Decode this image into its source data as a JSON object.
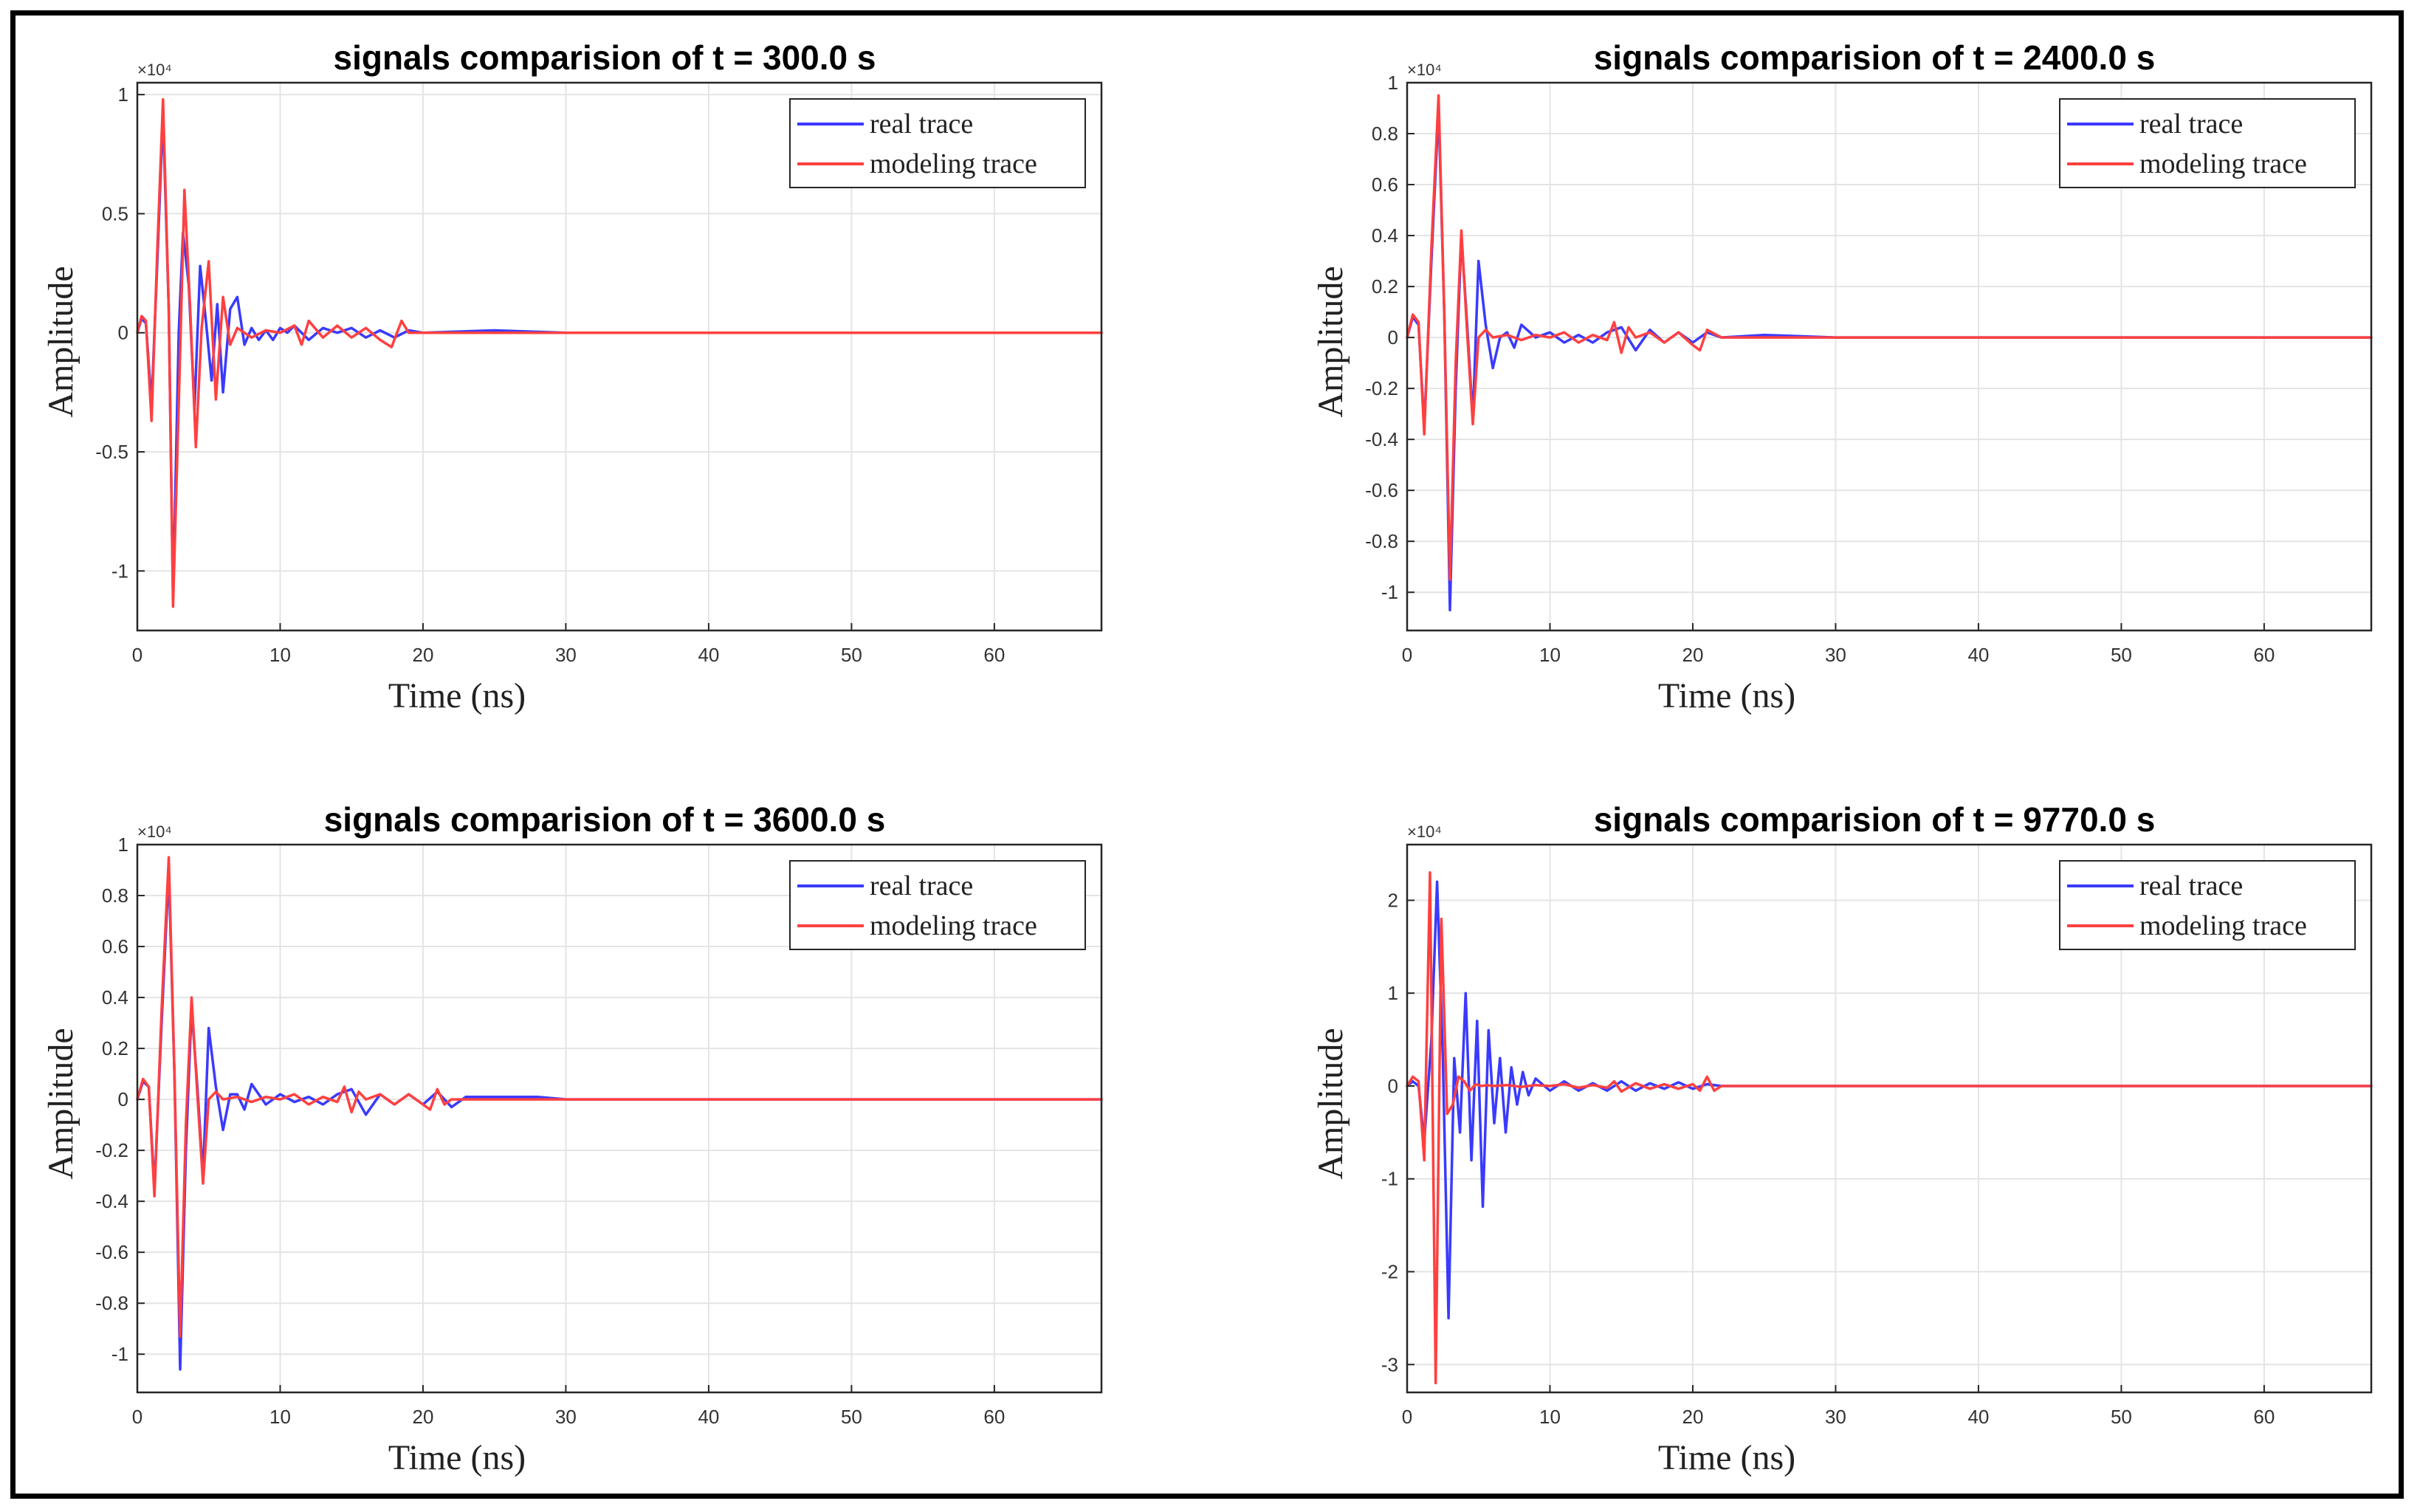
{
  "chart_data": [
    {
      "type": "line",
      "title": "signals comparision of t = 300.0 s",
      "xlabel": "Time (ns)",
      "ylabel": "Amplitude",
      "y_multiplier": "×10⁴",
      "xlim": [
        0,
        67.5
      ],
      "ylim": [
        -1.25,
        1.05
      ],
      "xticks": [
        0,
        10,
        20,
        30,
        40,
        50,
        60
      ],
      "yticks": [
        -1,
        -0.5,
        0,
        0.5,
        1
      ],
      "ytick_labels": [
        "-1",
        "-0.5",
        "0",
        "0.5",
        "1"
      ],
      "legend": [
        "real trace",
        "modeling trace"
      ],
      "legend_position": "top-right",
      "grid": true,
      "series": [
        {
          "name": "real trace",
          "color": "#3a3aff",
          "x": [
            0,
            0.3,
            0.6,
            1.0,
            1.4,
            1.8,
            2.2,
            2.5,
            2.9,
            3.2,
            3.6,
            4.0,
            4.4,
            4.8,
            5.2,
            5.6,
            6.0,
            6.5,
            7.0,
            7.5,
            8.0,
            8.5,
            9.0,
            9.5,
            10.0,
            10.5,
            11.0,
            12,
            13,
            14,
            15,
            16,
            17,
            18,
            19,
            20,
            25,
            30,
            40,
            50,
            60,
            67.5
          ],
          "values": [
            0,
            0.06,
            0.04,
            -0.3,
            0.3,
            0.92,
            0.1,
            -1.12,
            0.0,
            0.42,
            0.2,
            -0.32,
            0.28,
            0.05,
            -0.2,
            0.12,
            -0.25,
            0.1,
            0.15,
            -0.05,
            0.02,
            -0.03,
            0.01,
            -0.03,
            0.02,
            0.0,
            0.03,
            -0.03,
            0.02,
            0.0,
            0.02,
            -0.02,
            0.01,
            -0.02,
            0.01,
            0.0,
            0.01,
            0.0,
            0.0,
            0.0,
            0.0,
            0.0
          ]
        },
        {
          "name": "modeling trace",
          "color": "#ff4040",
          "x": [
            0,
            0.3,
            0.6,
            1.0,
            1.4,
            1.8,
            2.2,
            2.5,
            2.9,
            3.3,
            3.7,
            4.1,
            4.5,
            5.0,
            5.5,
            6.0,
            6.5,
            7.0,
            8.0,
            9.0,
            10.0,
            11.0,
            11.5,
            12.0,
            13,
            14,
            15,
            16,
            17,
            17.8,
            18.5,
            19,
            20,
            30,
            40,
            50,
            60,
            67.5
          ],
          "values": [
            0,
            0.07,
            0.05,
            -0.37,
            0.35,
            0.98,
            0.1,
            -1.15,
            -0.3,
            0.6,
            0.1,
            -0.48,
            0.02,
            0.3,
            -0.28,
            0.15,
            -0.05,
            0.02,
            -0.02,
            0.01,
            0.0,
            0.03,
            -0.05,
            0.05,
            -0.02,
            0.03,
            -0.02,
            0.02,
            -0.03,
            -0.06,
            0.05,
            0.0,
            0.0,
            0.0,
            0.0,
            0.0,
            0.0,
            0.0
          ]
        }
      ]
    },
    {
      "type": "line",
      "title": "signals comparision of t = 2400.0 s",
      "xlabel": "Time (ns)",
      "ylabel": "Amplitude",
      "y_multiplier": "×10⁴",
      "xlim": [
        0,
        67.5
      ],
      "ylim": [
        -1.15,
        1.0
      ],
      "xticks": [
        0,
        10,
        20,
        30,
        40,
        50,
        60
      ],
      "yticks": [
        -1,
        -0.8,
        -0.6,
        -0.4,
        -0.2,
        0,
        0.2,
        0.4,
        0.6,
        0.8,
        1
      ],
      "ytick_labels": [
        "-1",
        "-0.8",
        "-0.6",
        "-0.4",
        "-0.2",
        "0",
        "0.2",
        "0.4",
        "0.6",
        "0.8",
        "1"
      ],
      "legend": [
        "real trace",
        "modeling trace"
      ],
      "legend_position": "top-right",
      "grid": true,
      "series": [
        {
          "name": "real trace",
          "color": "#3a3aff",
          "x": [
            0,
            0.4,
            0.8,
            1.2,
            1.7,
            2.2,
            2.6,
            3.0,
            3.4,
            3.8,
            4.2,
            4.6,
            5.0,
            5.5,
            6.0,
            6.5,
            7.0,
            7.5,
            8.0,
            9,
            10,
            11,
            12,
            13,
            14,
            15,
            16,
            17,
            18,
            19,
            20,
            21,
            22,
            25,
            30,
            40,
            50,
            60,
            67.5
          ],
          "values": [
            0,
            0.08,
            0.05,
            -0.35,
            0.3,
            0.9,
            0.1,
            -1.07,
            -0.2,
            0.4,
            0.05,
            -0.32,
            0.3,
            0.05,
            -0.12,
            0.0,
            0.02,
            -0.04,
            0.05,
            0.0,
            0.02,
            -0.02,
            0.01,
            -0.02,
            0.02,
            0.04,
            -0.05,
            0.03,
            -0.02,
            0.02,
            -0.02,
            0.02,
            0.0,
            0.01,
            0.0,
            0.0,
            0.0,
            0.0,
            0.0
          ]
        },
        {
          "name": "modeling trace",
          "color": "#ff4040",
          "x": [
            0,
            0.4,
            0.8,
            1.2,
            1.7,
            2.2,
            2.6,
            3.0,
            3.4,
            3.8,
            4.2,
            4.6,
            5.0,
            5.5,
            6.0,
            7,
            8,
            9,
            10,
            11,
            12,
            13,
            14,
            14.5,
            15,
            15.5,
            16,
            17,
            18,
            19,
            20,
            20.5,
            21,
            22,
            30,
            40,
            50,
            60,
            67.5
          ],
          "values": [
            0,
            0.09,
            0.06,
            -0.38,
            0.35,
            0.95,
            0.1,
            -0.95,
            -0.1,
            0.42,
            0.02,
            -0.34,
            0.0,
            0.03,
            0.0,
            0.01,
            -0.01,
            0.01,
            0.0,
            0.02,
            -0.02,
            0.01,
            -0.01,
            0.06,
            -0.06,
            0.04,
            0.0,
            0.02,
            -0.02,
            0.02,
            -0.03,
            -0.05,
            0.03,
            0.0,
            0.0,
            0.0,
            0.0,
            0.0,
            0.0
          ]
        }
      ]
    },
    {
      "type": "line",
      "title": "signals comparision of t = 3600.0 s",
      "xlabel": "Time (ns)",
      "ylabel": "Amplitude",
      "y_multiplier": "×10⁴",
      "xlim": [
        0,
        67.5
      ],
      "ylim": [
        -1.15,
        1.0
      ],
      "xticks": [
        0,
        10,
        20,
        30,
        40,
        50,
        60
      ],
      "yticks": [
        -1,
        -0.8,
        -0.6,
        -0.4,
        -0.2,
        0,
        0.2,
        0.4,
        0.6,
        0.8,
        1
      ],
      "ytick_labels": [
        "-1",
        "-0.8",
        "-0.6",
        "-0.4",
        "-0.2",
        "0",
        "0.2",
        "0.4",
        "0.6",
        "0.8",
        "1"
      ],
      "legend": [
        "real trace",
        "modeling trace"
      ],
      "legend_position": "top-right",
      "grid": true,
      "series": [
        {
          "name": "real trace",
          "color": "#3a3aff",
          "x": [
            0,
            0.4,
            0.8,
            1.2,
            1.7,
            2.2,
            2.6,
            3.0,
            3.4,
            3.8,
            4.2,
            4.6,
            5.0,
            5.5,
            6.0,
            6.5,
            7.0,
            7.5,
            8.0,
            9,
            10,
            11,
            12,
            13,
            14,
            15,
            16,
            17,
            18,
            19,
            20,
            21,
            22,
            23,
            25,
            28,
            30,
            40,
            50,
            60,
            67.5
          ],
          "values": [
            0,
            0.07,
            0.05,
            -0.35,
            0.3,
            0.9,
            0.1,
            -1.06,
            -0.2,
            0.36,
            0.05,
            -0.3,
            0.28,
            0.05,
            -0.12,
            0.02,
            0.02,
            -0.04,
            0.06,
            -0.02,
            0.02,
            -0.01,
            0.01,
            -0.02,
            0.02,
            0.04,
            -0.06,
            0.02,
            -0.02,
            0.02,
            -0.02,
            0.03,
            -0.03,
            0.01,
            0.01,
            0.01,
            0.0,
            0.0,
            0.0,
            0.0,
            0.0
          ]
        },
        {
          "name": "modeling trace",
          "color": "#ff4040",
          "x": [
            0,
            0.4,
            0.8,
            1.2,
            1.7,
            2.2,
            2.6,
            3.0,
            3.4,
            3.8,
            4.2,
            4.6,
            5.0,
            5.5,
            6.0,
            7,
            8,
            9,
            10,
            11,
            12,
            13,
            14,
            14.5,
            15,
            15.5,
            16,
            17,
            18,
            19,
            20,
            20.5,
            21,
            21.5,
            22,
            30,
            40,
            50,
            60,
            67.5
          ],
          "values": [
            0,
            0.08,
            0.05,
            -0.38,
            0.35,
            0.95,
            0.1,
            -0.93,
            -0.1,
            0.4,
            0.02,
            -0.33,
            0.0,
            0.03,
            0.0,
            0.01,
            -0.01,
            0.01,
            0.0,
            0.02,
            -0.02,
            0.01,
            -0.01,
            0.05,
            -0.05,
            0.03,
            0.0,
            0.02,
            -0.02,
            0.02,
            -0.02,
            -0.04,
            0.04,
            -0.02,
            0.0,
            0.0,
            0.0,
            0.0,
            0.0,
            0.0
          ]
        }
      ]
    },
    {
      "type": "line",
      "title": "signals comparision of t = 9770.0 s",
      "xlabel": "Time (ns)",
      "ylabel": "Amplitude",
      "y_multiplier": "×10⁴",
      "xlim": [
        0,
        67.5
      ],
      "ylim": [
        -3.3,
        2.6
      ],
      "xticks": [
        0,
        10,
        20,
        30,
        40,
        50,
        60
      ],
      "yticks": [
        -3,
        -2,
        -1,
        0,
        1,
        2
      ],
      "ytick_labels": [
        "-3",
        "-2",
        "-1",
        "0",
        "1",
        "2"
      ],
      "legend": [
        "real trace",
        "modeling trace"
      ],
      "legend_position": "top-right",
      "grid": true,
      "series": [
        {
          "name": "real trace",
          "color": "#3a3aff",
          "x": [
            0,
            0.4,
            0.8,
            1.2,
            1.7,
            2.1,
            2.5,
            2.9,
            3.3,
            3.7,
            4.1,
            4.5,
            4.9,
            5.3,
            5.7,
            6.1,
            6.5,
            6.9,
            7.3,
            7.7,
            8.1,
            8.5,
            9,
            10,
            11,
            12,
            13,
            14,
            15,
            16,
            17,
            18,
            19,
            20,
            21,
            22,
            30,
            40,
            50,
            60,
            67.5
          ],
          "values": [
            0,
            0.05,
            0.0,
            -0.6,
            0.5,
            2.2,
            0.3,
            -2.5,
            0.3,
            -0.5,
            1.0,
            -0.8,
            0.7,
            -1.3,
            0.6,
            -0.4,
            0.3,
            -0.5,
            0.2,
            -0.2,
            0.15,
            -0.1,
            0.08,
            -0.05,
            0.05,
            -0.05,
            0.03,
            -0.05,
            0.05,
            -0.05,
            0.03,
            -0.03,
            0.04,
            -0.03,
            0.02,
            0.0,
            0.0,
            0.0,
            0.0,
            0.0,
            0.0
          ]
        },
        {
          "name": "modeling trace",
          "color": "#ff4040",
          "x": [
            0,
            0.4,
            0.8,
            1.2,
            1.6,
            2.0,
            2.4,
            2.8,
            3.2,
            3.6,
            4.0,
            4.4,
            4.8,
            5.2,
            5.6,
            6.0,
            7,
            8,
            9,
            10,
            11,
            12,
            13,
            14,
            14.5,
            15,
            16,
            17,
            18,
            19,
            20,
            20.5,
            21,
            21.5,
            22,
            30,
            40,
            50,
            60,
            67.5
          ],
          "values": [
            0,
            0.1,
            0.05,
            -0.8,
            2.3,
            -3.2,
            1.8,
            -0.3,
            -0.2,
            0.1,
            0.05,
            -0.05,
            0.02,
            0.0,
            0.01,
            0.0,
            0.01,
            -0.01,
            0.01,
            0.0,
            0.02,
            -0.02,
            0.01,
            -0.02,
            0.05,
            -0.06,
            0.03,
            -0.03,
            0.02,
            -0.03,
            0.02,
            -0.05,
            0.1,
            -0.05,
            0.0,
            0.0,
            0.0,
            0.0,
            0.0,
            0.0
          ]
        }
      ]
    }
  ]
}
